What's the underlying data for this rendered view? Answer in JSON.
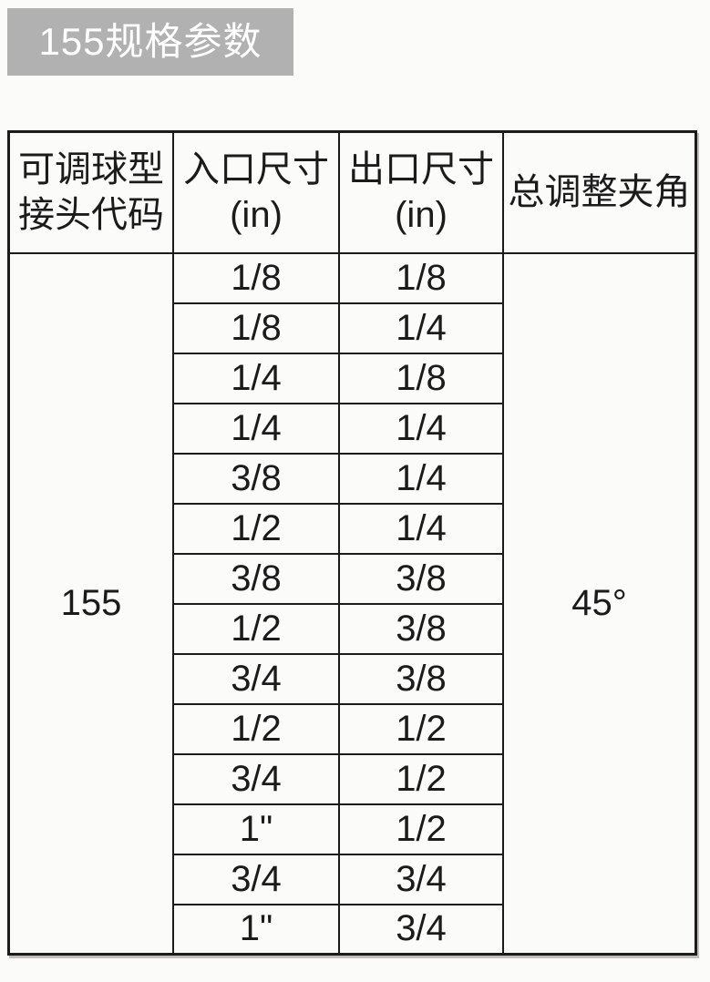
{
  "title": {
    "text": "155规格参数",
    "bg_color": "#b1b1b1",
    "text_color": "#ffffff"
  },
  "table": {
    "headers": [
      "可调球型\n接头代码",
      "入口尺寸\n(in)",
      "出口尺寸\n(in)",
      "总调整夹角"
    ],
    "joint_code": "155",
    "total_adjustment_angle": "45°",
    "rows": [
      {
        "inlet": "1/8",
        "outlet": "1/8"
      },
      {
        "inlet": "1/8",
        "outlet": "1/4"
      },
      {
        "inlet": "1/4",
        "outlet": "1/8"
      },
      {
        "inlet": "1/4",
        "outlet": "1/4"
      },
      {
        "inlet": "3/8",
        "outlet": "1/4"
      },
      {
        "inlet": "1/2",
        "outlet": "1/4"
      },
      {
        "inlet": "3/8",
        "outlet": "3/8"
      },
      {
        "inlet": "1/2",
        "outlet": "3/8"
      },
      {
        "inlet": "3/4",
        "outlet": "3/8"
      },
      {
        "inlet": "1/2",
        "outlet": "1/2"
      },
      {
        "inlet": "3/4",
        "outlet": "1/2"
      },
      {
        "inlet": "1\"",
        "outlet": "1/2"
      },
      {
        "inlet": "3/4",
        "outlet": "3/4"
      },
      {
        "inlet": "1\"",
        "outlet": "3/4"
      }
    ]
  }
}
